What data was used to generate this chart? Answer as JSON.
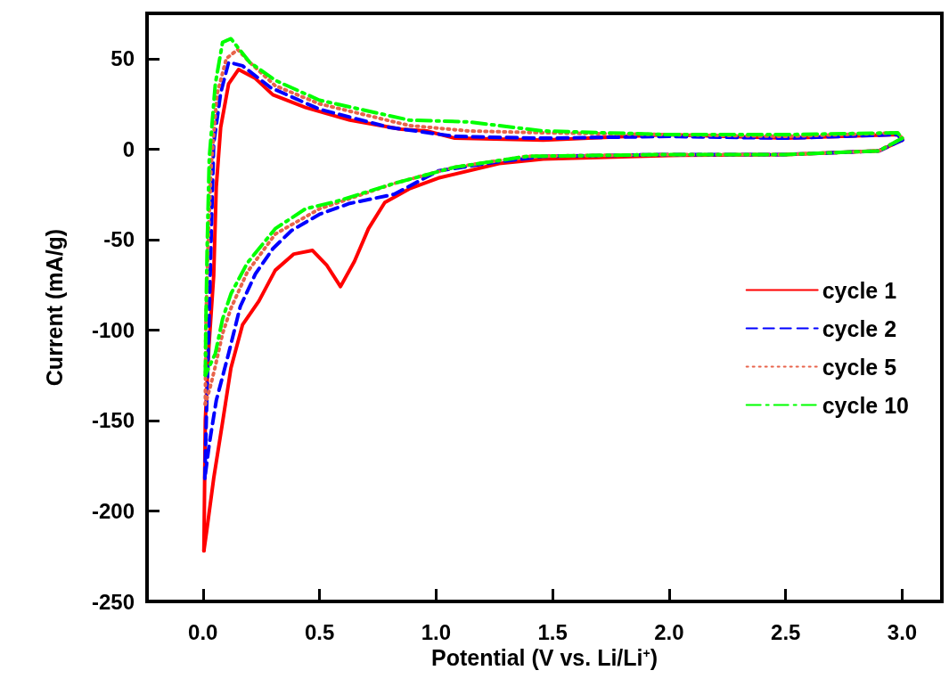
{
  "chart_data": {
    "type": "line",
    "xlabel": "Potential (V vs. Li/Li$^{+}$)",
    "ylabel": "Current (mA/g)",
    "xlim": [
      -0.24,
      3.17
    ],
    "xticks": [
      {
        "value": 0,
        "label": "0.0"
      },
      0.5,
      {
        "value": 1,
        "label": "1.0"
      },
      1.5,
      {
        "value": 2,
        "label": "2.0"
      },
      2.5,
      {
        "value": 3,
        "label": "3.0"
      }
    ],
    "ylim": [
      -250,
      75
    ],
    "yticks": [
      -250,
      -200,
      -150,
      -100,
      -50,
      0,
      50
    ],
    "grid": false,
    "legend": "right",
    "marker": "none",
    "series": [
      {
        "name": "cycle 1",
        "color": "#ff0000",
        "line_style": "solid",
        "x": [
          3.0,
          2.9,
          2.5,
          2.0,
          1.46,
          1.27,
          1.01,
          0.885,
          0.78,
          0.71,
          0.65,
          0.59,
          0.53,
          0.47,
          0.39,
          0.31,
          0.24,
          0.17,
          0.12,
          0.084,
          0.046,
          0.015,
          0.004
        ],
        "values": [
          5,
          -1,
          -3,
          -3.5,
          -5.5,
          -8,
          -16,
          -22,
          -29.5,
          -44,
          -62,
          -76,
          -64,
          -56,
          -58,
          -67,
          -84,
          -97,
          -121,
          -151,
          -182,
          -212,
          -222
        ]
      },
      {
        "color": "#ff0000",
        "line_style": "solid",
        "x": [
          0.004,
          0.01,
          0.025,
          0.046,
          0.057,
          0.076,
          0.11,
          0.153,
          0.225,
          0.3,
          0.44,
          0.63,
          0.85,
          0.96,
          1.08,
          1.46,
          2.0,
          2.5,
          2.98,
          3.0
        ],
        "values": [
          -222,
          -150,
          -110,
          -70,
          -21,
          12,
          36,
          44,
          39,
          30,
          23,
          16,
          11,
          10,
          6,
          5,
          8,
          6,
          8,
          5
        ]
      },
      {
        "name": "cycle 2",
        "color": "#0000ff",
        "line_style": "dashed",
        "x": [
          3.0,
          2.9,
          2.5,
          2.0,
          1.46,
          1.27,
          1.01,
          0.82,
          0.63,
          0.5,
          0.38,
          0.3,
          0.225,
          0.16,
          0.11,
          0.057,
          0.027,
          0.008
        ],
        "values": [
          5,
          -1,
          -3,
          -3,
          -4,
          -7,
          -12,
          -25,
          -30,
          -36,
          -45,
          -55,
          -69,
          -87,
          -113,
          -139,
          -163,
          -182
        ]
      },
      {
        "color": "#0000ff",
        "line_style": "dashed",
        "x": [
          0.008,
          0.015,
          0.025,
          0.034,
          0.046,
          0.076,
          0.11,
          0.17,
          0.29,
          0.5,
          0.8,
          1.08,
          1.46,
          2.0,
          2.5,
          2.98,
          3.0
        ],
        "values": [
          -182,
          -146,
          -100,
          -54,
          3,
          31,
          48,
          46,
          34,
          22,
          12,
          7,
          6,
          7,
          6,
          8,
          5
        ]
      },
      {
        "name": "cycle 5",
        "color": "#e8634a",
        "line_style": "dotted",
        "x": [
          3.0,
          2.9,
          2.5,
          2.0,
          1.39,
          1.08,
          0.82,
          0.57,
          0.5,
          0.31,
          0.19,
          0.12,
          0.084,
          0.053,
          0.03,
          0.01
        ],
        "values": [
          6,
          -1,
          -3,
          -3,
          -4,
          -10,
          -19,
          -30,
          -33,
          -47,
          -68,
          -88,
          -102,
          -120,
          -132,
          -141
        ]
      },
      {
        "color": "#e8634a",
        "line_style": "dotted",
        "x": [
          0.01,
          0.012,
          0.02,
          0.035,
          0.06,
          0.1,
          0.149,
          0.2,
          0.31,
          0.5,
          0.885,
          1.14,
          1.46,
          2.0,
          2.5,
          2.98,
          3.0
        ],
        "values": [
          -141,
          -100,
          -60,
          -10,
          30,
          50,
          55,
          48,
          35,
          25,
          13,
          10,
          9,
          8,
          7,
          9,
          6
        ]
      },
      {
        "name": "cycle 10",
        "color": "#00ff00",
        "line_style": "dashdot",
        "x": [
          3.0,
          2.9,
          2.5,
          2.0,
          1.39,
          1.08,
          0.82,
          0.57,
          0.44,
          0.31,
          0.19,
          0.12,
          0.084,
          0.053,
          0.01
        ],
        "values": [
          6,
          -1,
          -3,
          -3,
          -4,
          -10,
          -19,
          -29,
          -33,
          -44,
          -63,
          -80,
          -94,
          -113,
          -125
        ]
      },
      {
        "color": "#00ff00",
        "line_style": "dashdot",
        "x": [
          0.01,
          0.012,
          0.014,
          0.018,
          0.027,
          0.053,
          0.084,
          0.12,
          0.2,
          0.31,
          0.5,
          0.885,
          1.14,
          1.46,
          2.0,
          2.5,
          2.98,
          3.0
        ],
        "values": [
          -125,
          -101,
          -84,
          -54,
          -5,
          36,
          59,
          61,
          48,
          38,
          27,
          16,
          15,
          10,
          8,
          8,
          9,
          6
        ]
      }
    ]
  }
}
